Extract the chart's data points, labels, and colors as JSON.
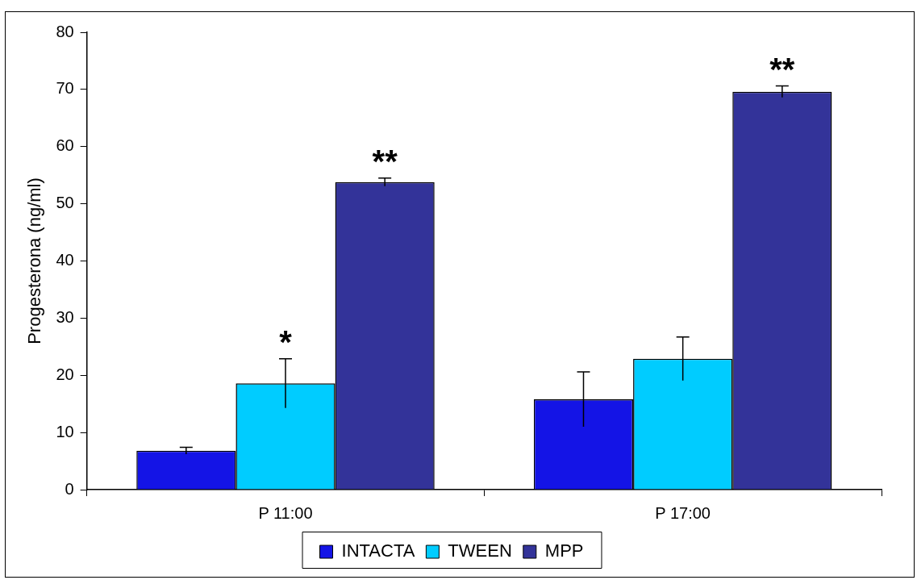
{
  "chart_data": {
    "type": "bar",
    "ylabel": "Progesterona (ng/ml)",
    "categories": [
      "P 11:00",
      "P 17:00"
    ],
    "series": [
      {
        "name": "INTACTA",
        "color": "#1414e6",
        "values": [
          6.8,
          15.8
        ],
        "errors": [
          0.6,
          4.8
        ]
      },
      {
        "name": "TWEEN",
        "color": "#00ccff",
        "values": [
          18.6,
          22.9
        ],
        "errors": [
          4.3,
          3.8
        ],
        "value_labels": [
          "*",
          null
        ]
      },
      {
        "name": "MPP",
        "color": "#333399",
        "values": [
          53.8,
          69.6
        ],
        "errors": [
          0.7,
          1.0
        ],
        "value_labels": [
          "**",
          "**"
        ]
      }
    ],
    "ylim": [
      0,
      80
    ],
    "yticks": [
      0,
      10,
      20,
      30,
      40,
      50,
      60,
      70,
      80
    ],
    "grid": false,
    "legend": "bottom"
  }
}
